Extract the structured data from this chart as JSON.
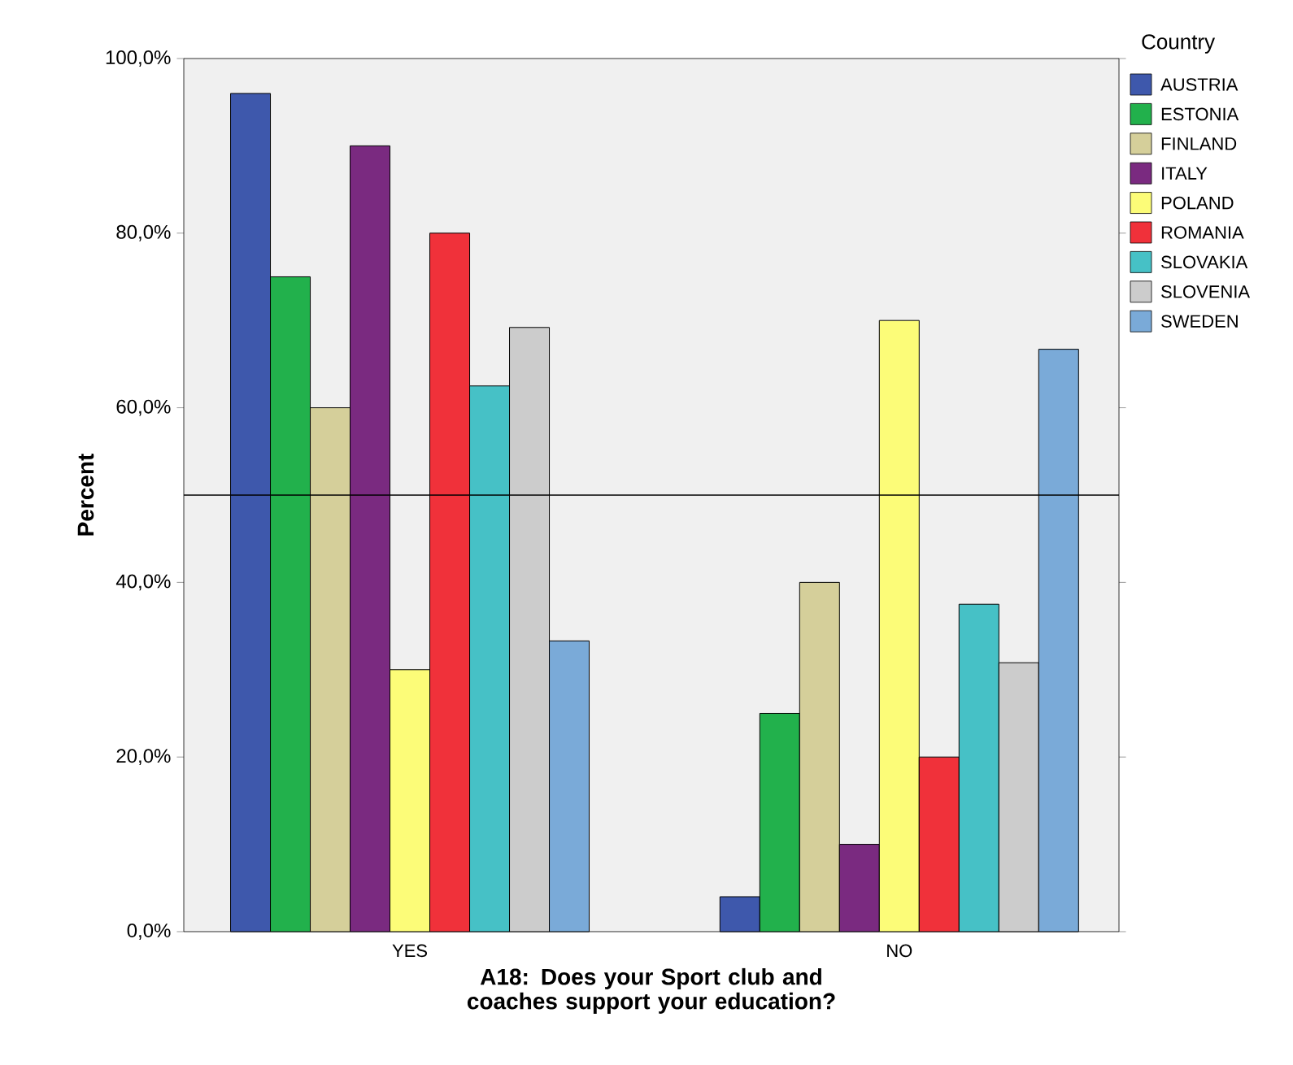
{
  "chart_data": {
    "type": "bar",
    "xlabel": "A18: Does your Sport club and coaches support your education?",
    "ylabel": "Percent",
    "legend_title": "Country",
    "legend": "right",
    "categories": [
      "YES",
      "NO"
    ],
    "series": [
      {
        "name": "AUSTRIA",
        "color": "#3e58ac",
        "values": [
          96,
          4
        ]
      },
      {
        "name": "ESTONIA",
        "color": "#22b14c",
        "values": [
          75,
          25
        ]
      },
      {
        "name": "FINLAND",
        "color": "#d5cf9a",
        "values": [
          60,
          40
        ]
      },
      {
        "name": "ITALY",
        "color": "#7a2a80",
        "values": [
          90,
          10
        ]
      },
      {
        "name": "POLAND",
        "color": "#fcfc78",
        "values": [
          30,
          70
        ]
      },
      {
        "name": "ROMANIA",
        "color": "#f0313a",
        "values": [
          80,
          20
        ]
      },
      {
        "name": "SLOVAKIA",
        "color": "#46c1c6",
        "values": [
          62.5,
          37.5
        ]
      },
      {
        "name": "SLOVENIA",
        "color": "#cccccc",
        "values": [
          69.2,
          30.8
        ]
      },
      {
        "name": "SWEDEN",
        "color": "#7aaad8",
        "values": [
          33.3,
          66.7
        ]
      }
    ],
    "ylim": [
      0,
      100
    ],
    "yticks": [
      {
        "value": 0,
        "label": "0,0%"
      },
      {
        "value": 20,
        "label": "20,0%"
      },
      {
        "value": 40,
        "label": "40,0%"
      },
      {
        "value": 60,
        "label": "60,0%"
      },
      {
        "value": 80,
        "label": "80,0%"
      },
      {
        "value": 100,
        "label": "100,0%"
      }
    ],
    "ref_lines": [
      {
        "axis": "y",
        "value": 50
      }
    ],
    "grid": false
  }
}
